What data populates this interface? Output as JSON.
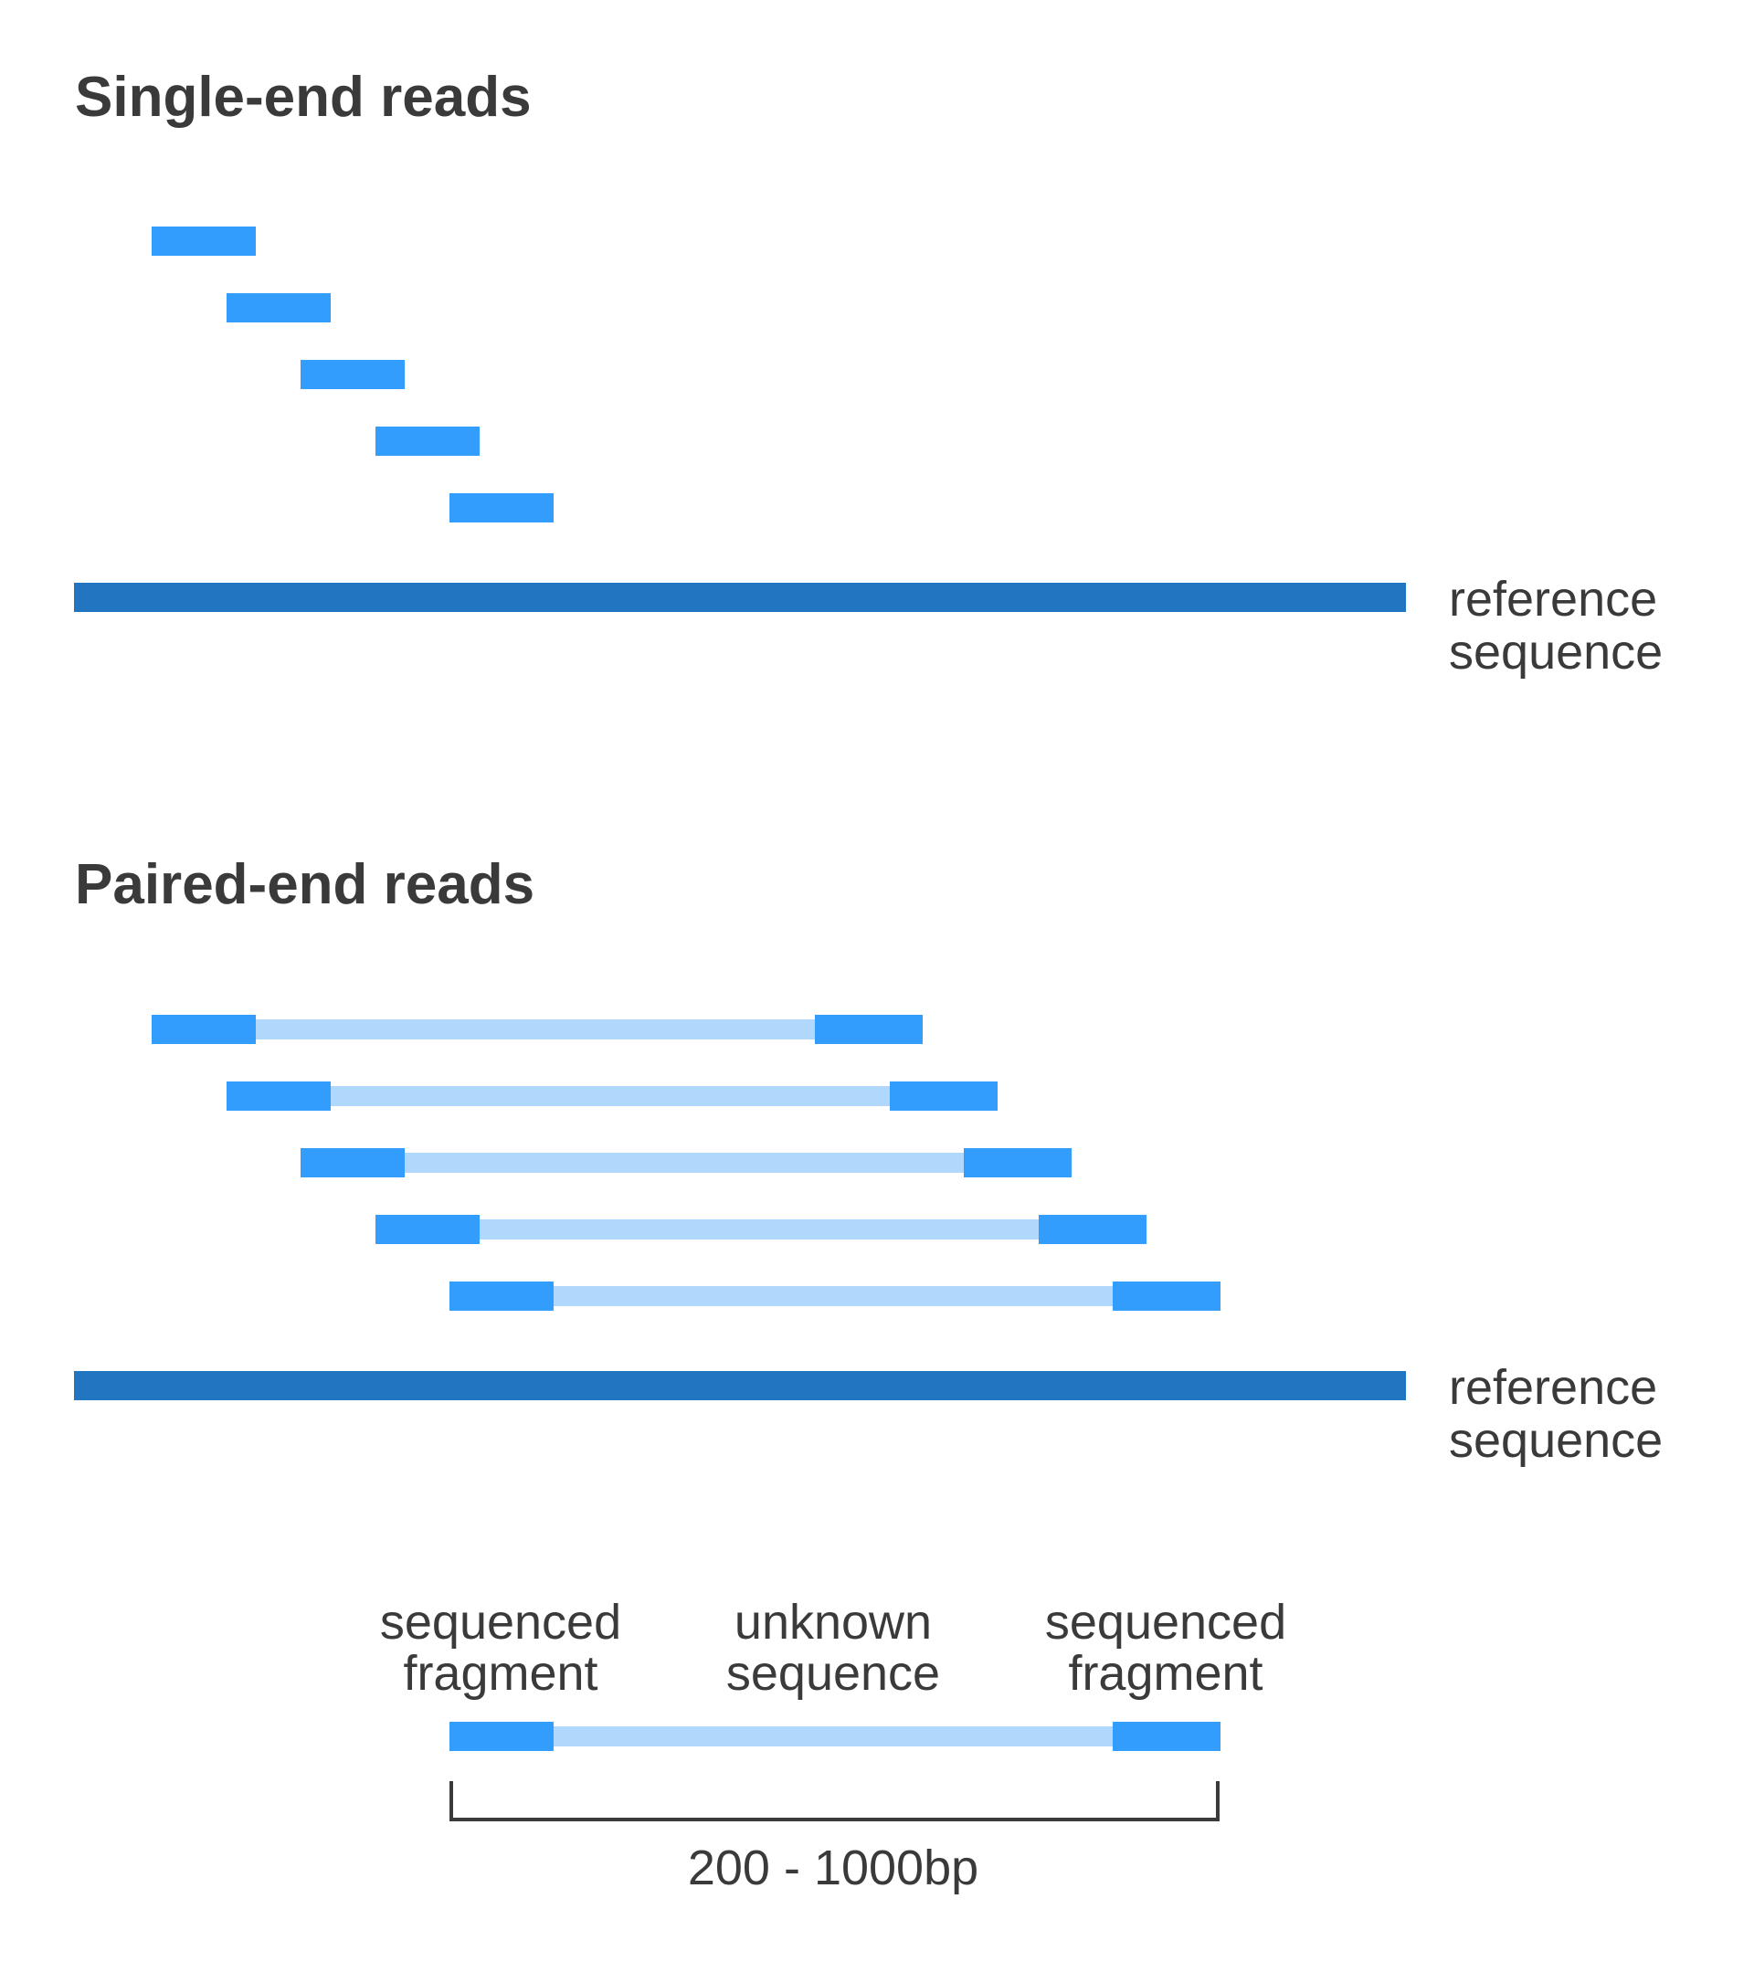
{
  "colors": {
    "read": "#339dfd",
    "gap": "#b0d8fc",
    "reference": "#2276c1",
    "text": "#3a3a3a"
  },
  "single_end": {
    "title": "Single-end reads",
    "reference_label": [
      "reference",
      "sequence"
    ]
  },
  "paired_end": {
    "title": "Paired-end reads",
    "reference_label": [
      "reference",
      "sequence"
    ]
  },
  "legend": {
    "left_caption": [
      "sequenced",
      "fragment"
    ],
    "middle_caption": [
      "unknown",
      "sequence"
    ],
    "right_caption": [
      "sequenced",
      "fragment"
    ],
    "range": "200 - 1000bp"
  }
}
